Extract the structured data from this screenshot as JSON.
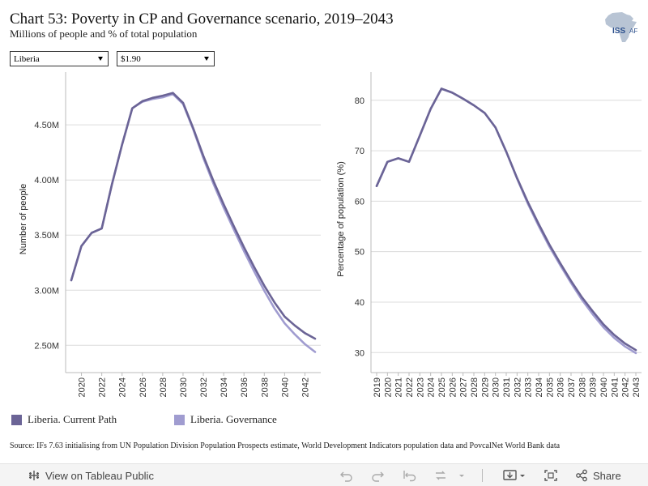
{
  "header": {
    "title": "Chart 53: Poverty in CP and Governance scenario, 2019–2043",
    "subtitle": "Millions of people and % of total population",
    "logo_text": "ISS AF"
  },
  "filters": {
    "country": "Liberia",
    "threshold": "$1.90"
  },
  "colors": {
    "current_path": "#6b6496",
    "governance": "#a09cd0",
    "grid": "#dcdcdc",
    "axis": "#999999"
  },
  "chart_data": [
    {
      "type": "line",
      "ylabel": "Number of people",
      "y_tick_labels": [
        "2.50M",
        "3.00M",
        "3.50M",
        "4.00M",
        "4.50M"
      ],
      "y_tick_values": [
        2500000,
        3000000,
        3500000,
        4000000,
        4500000
      ],
      "ylim": [
        2370000,
        4920000
      ],
      "x_tick_labels": [
        "2020",
        "2022",
        "2024",
        "2026",
        "2028",
        "2030",
        "2032",
        "2034",
        "2036",
        "2038",
        "2040",
        "2042"
      ],
      "x": [
        2019,
        2020,
        2021,
        2022,
        2023,
        2024,
        2025,
        2026,
        2027,
        2028,
        2029,
        2030,
        2031,
        2032,
        2033,
        2034,
        2035,
        2036,
        2037,
        2038,
        2039,
        2040,
        2041,
        2042,
        2043
      ],
      "series": [
        {
          "name": "Liberia. Current Path",
          "values": [
            3090000,
            3400000,
            3520000,
            3560000,
            3960000,
            4320000,
            4650000,
            4715000,
            4745000,
            4765000,
            4790000,
            4700000,
            4470000,
            4220000,
            3990000,
            3780000,
            3580000,
            3390000,
            3210000,
            3040000,
            2890000,
            2760000,
            2680000,
            2610000,
            2560000
          ]
        },
        {
          "name": "Liberia. Governance",
          "values": [
            3090000,
            3400000,
            3520000,
            3560000,
            3960000,
            4320000,
            4650000,
            4710000,
            4735000,
            4750000,
            4780000,
            4690000,
            4460000,
            4200000,
            3965000,
            3750000,
            3550000,
            3355000,
            3170000,
            2995000,
            2835000,
            2700000,
            2600000,
            2510000,
            2440000
          ]
        }
      ],
      "grid": true,
      "legend": "bottom"
    },
    {
      "type": "line",
      "ylabel": "Percentage of population (%)",
      "y_tick_labels": [
        "30",
        "40",
        "50",
        "60",
        "70",
        "80"
      ],
      "y_tick_values": [
        30,
        40,
        50,
        60,
        70,
        80
      ],
      "ylim": [
        28.6,
        84.3
      ],
      "x_tick_labels": [
        "2019",
        "2020",
        "2021",
        "2022",
        "2023",
        "2024",
        "2025",
        "2026",
        "2027",
        "2028",
        "2029",
        "2030",
        "2031",
        "2032",
        "2033",
        "2034",
        "2035",
        "2036",
        "2037",
        "2038",
        "2039",
        "2040",
        "2041",
        "2042",
        "2043"
      ],
      "x": [
        2019,
        2020,
        2021,
        2022,
        2023,
        2024,
        2025,
        2026,
        2027,
        2028,
        2029,
        2030,
        2031,
        2032,
        2033,
        2034,
        2035,
        2036,
        2037,
        2038,
        2039,
        2040,
        2041,
        2042,
        2043
      ],
      "series": [
        {
          "name": "Liberia. Current Path",
          "values": [
            63.0,
            67.8,
            68.5,
            67.8,
            73.0,
            78.3,
            82.3,
            81.5,
            80.3,
            79.0,
            77.5,
            74.6,
            69.8,
            64.6,
            59.8,
            55.5,
            51.4,
            47.7,
            44.2,
            41.0,
            38.2,
            35.6,
            33.5,
            31.8,
            30.5
          ]
        },
        {
          "name": "Liberia. Governance",
          "values": [
            63.0,
            67.8,
            68.5,
            67.8,
            73.0,
            78.3,
            82.3,
            81.5,
            80.3,
            79.0,
            77.5,
            74.6,
            69.8,
            64.5,
            59.5,
            55.1,
            51.0,
            47.3,
            43.8,
            40.5,
            37.6,
            35.0,
            32.9,
            31.2,
            29.9
          ]
        }
      ],
      "grid": true,
      "legend": "bottom"
    }
  ],
  "legend": {
    "items": [
      "Liberia. Current Path",
      "Liberia. Governance"
    ]
  },
  "source": "Source: IFs 7.63 initialising from UN Population Division Population Prospects estimate, World Development Indicators population data and PovcalNet World Bank data",
  "toolbar": {
    "view_label": "View on Tableau Public",
    "share_label": "Share"
  }
}
